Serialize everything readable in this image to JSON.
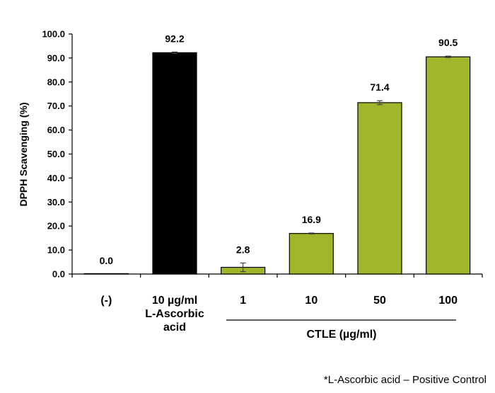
{
  "chart_data": {
    "type": "bar",
    "ylabel": "DPPH Scavenging (%)",
    "ylim": [
      0,
      100
    ],
    "yticks": [
      "0.0",
      "10.0",
      "20.0",
      "30.0",
      "40.0",
      "50.0",
      "60.0",
      "70.0",
      "80.0",
      "90.0",
      "100.0"
    ],
    "grid": false,
    "categories": [
      "(-)",
      "10 µg/ml\nL-Ascorbic\nacid",
      "1",
      "10",
      "50",
      "100"
    ],
    "values": [
      0.0,
      92.2,
      2.8,
      16.9,
      71.4,
      90.5
    ],
    "value_labels": [
      "0.0",
      "92.2",
      "2.8",
      "16.9",
      "71.4",
      "90.5"
    ],
    "errors": [
      0.0,
      0.3,
      1.8,
      0.2,
      0.8,
      0.3
    ],
    "bar_colors": [
      "#1a1a1a",
      "#000000",
      "#a2b52a",
      "#a2b52a",
      "#a2b52a",
      "#a2b52a"
    ],
    "group_label": "CTLE (µg/ml)",
    "footnote": "*L-Ascorbic acid – Positive Control"
  }
}
